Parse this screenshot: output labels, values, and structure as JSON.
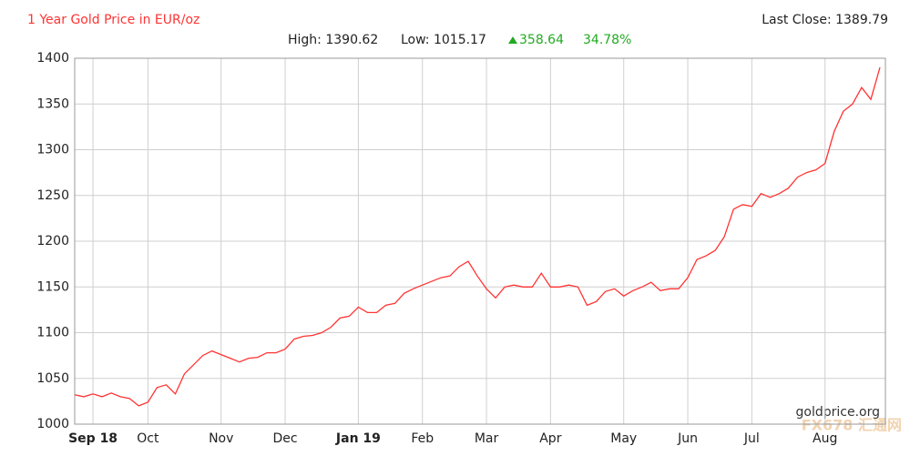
{
  "chart_data": {
    "type": "line",
    "title": "1 Year Gold Price in EUR/oz",
    "last_close": "Last Close: 1389.79",
    "stats": {
      "high": "High: 1390.62",
      "low": "Low: 1015.17",
      "change": "358.64",
      "change_pct": "34.78%"
    },
    "source": "goldprice.org",
    "watermark": "FX678 汇通网",
    "categories": [
      null,
      null,
      "Sep 18",
      null,
      null,
      null,
      null,
      null,
      "Oct",
      null,
      null,
      null,
      null,
      null,
      null,
      null,
      "Nov",
      null,
      null,
      null,
      null,
      null,
      null,
      "Dec",
      null,
      null,
      null,
      null,
      null,
      null,
      null,
      "Jan 19",
      null,
      null,
      null,
      null,
      null,
      null,
      "Feb",
      null,
      null,
      null,
      null,
      null,
      null,
      "Mar",
      null,
      null,
      null,
      null,
      null,
      null,
      "Apr",
      null,
      null,
      null,
      null,
      null,
      null,
      null,
      "May",
      null,
      null,
      null,
      null,
      null,
      null,
      "Jun",
      null,
      null,
      null,
      null,
      null,
      null,
      "Jul",
      null,
      null,
      null,
      null,
      null,
      null,
      null,
      "Aug",
      null,
      null,
      null,
      null,
      null,
      null
    ],
    "series": [
      {
        "name": "Gold EUR/oz",
        "color": "#ff3333",
        "values": [
          1032,
          1030,
          1033,
          1030,
          1034,
          1030,
          1028,
          1020,
          1024,
          1040,
          1043,
          1033,
          1055,
          1065,
          1075,
          1080,
          1076,
          1072,
          1068,
          1072,
          1073,
          1078,
          1078,
          1082,
          1093,
          1096,
          1097,
          1100,
          1106,
          1116,
          1118,
          1128,
          1122,
          1122,
          1130,
          1132,
          1143,
          1148,
          1152,
          1156,
          1160,
          1162,
          1172,
          1178,
          1162,
          1148,
          1138,
          1150,
          1152,
          1150,
          1150,
          1165,
          1150,
          1150,
          1152,
          1150,
          1130,
          1134,
          1145,
          1148,
          1140,
          1146,
          1150,
          1155,
          1146,
          1148,
          1148,
          1160,
          1180,
          1184,
          1190,
          1205,
          1235,
          1240,
          1238,
          1252,
          1248,
          1252,
          1258,
          1270,
          1275,
          1278,
          1285,
          1320,
          1342,
          1350,
          1368,
          1355,
          1390
        ]
      }
    ],
    "ylim": [
      1000,
      1400
    ],
    "yticks": [
      1000,
      1050,
      1100,
      1150,
      1200,
      1250,
      1300,
      1350,
      1400
    ],
    "grid": true
  }
}
